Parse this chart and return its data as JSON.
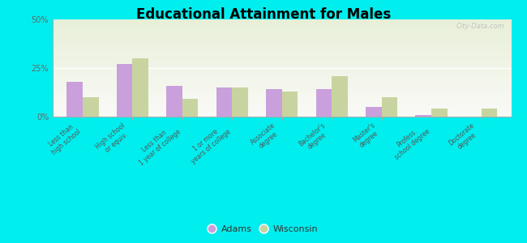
{
  "title": "Educational Attainment for Males",
  "categories": [
    "Less than\nhigh school",
    "High school\nor equiv.",
    "Less than\n1 year of college",
    "1 or more\nyears of college",
    "Associate\ndegree",
    "Bachelor's\ndegree",
    "Master's\ndegree",
    "Profess.\nschool degree",
    "Doctorate\ndegree"
  ],
  "adams": [
    18,
    27,
    16,
    15,
    14,
    14,
    5,
    1,
    0
  ],
  "wisconsin": [
    10,
    30,
    9,
    15,
    13,
    21,
    10,
    4,
    4
  ],
  "adams_color": "#c9a0dc",
  "wisconsin_color": "#c8d4a0",
  "outer_bg": "#00eeee",
  "yticks": [
    0,
    25,
    50
  ],
  "ylim": [
    0,
    50
  ],
  "legend_adams": "Adams",
  "legend_wisconsin": "Wisconsin",
  "watermark": "City-Data.com"
}
